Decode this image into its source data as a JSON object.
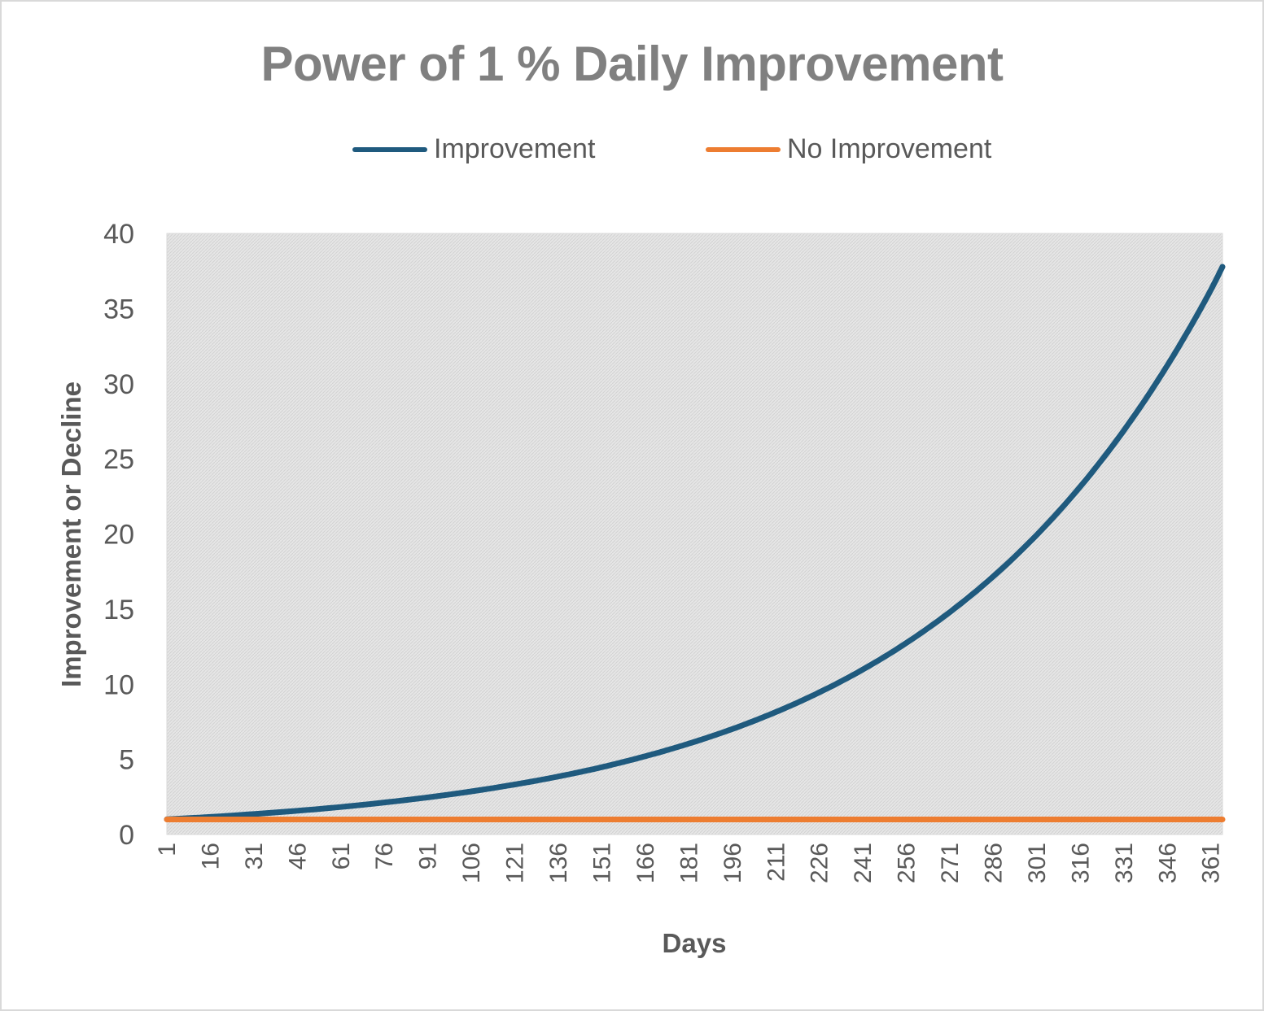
{
  "chart_data": {
    "type": "line",
    "title": "Power of 1 % Daily Improvement",
    "xlabel": "Days",
    "ylabel": "Improvement  or Decline",
    "x_range": [
      1,
      365
    ],
    "x_tick_labels": [
      "1",
      "16",
      "31",
      "46",
      "61",
      "76",
      "91",
      "106",
      "121",
      "136",
      "151",
      "166",
      "181",
      "196",
      "211",
      "226",
      "241",
      "256",
      "271",
      "286",
      "301",
      "316",
      "331",
      "346",
      "361"
    ],
    "ylim": [
      0,
      40
    ],
    "y_ticks": [
      0,
      5,
      10,
      15,
      20,
      25,
      30,
      35,
      40
    ],
    "grid": false,
    "plot_background": "#e3e3e3",
    "legend": {
      "position": "top"
    },
    "series": [
      {
        "name": "Improvement",
        "color": "#1f5a7e",
        "x": [
          1,
          16,
          31,
          46,
          61,
          76,
          91,
          106,
          121,
          136,
          151,
          166,
          181,
          196,
          211,
          226,
          241,
          256,
          271,
          286,
          301,
          316,
          331,
          346,
          361,
          365
        ],
        "values": [
          1.01,
          1.17,
          1.36,
          1.58,
          1.83,
          2.13,
          2.47,
          2.87,
          3.33,
          3.86,
          4.48,
          5.21,
          6.05,
          7.02,
          8.15,
          9.46,
          10.98,
          12.75,
          14.8,
          17.18,
          19.95,
          23.16,
          26.89,
          31.22,
          36.24,
          37.78
        ]
      },
      {
        "name": "No Improvement",
        "color": "#ed7d31",
        "x": [
          1,
          365
        ],
        "values": [
          1,
          1
        ]
      }
    ]
  }
}
